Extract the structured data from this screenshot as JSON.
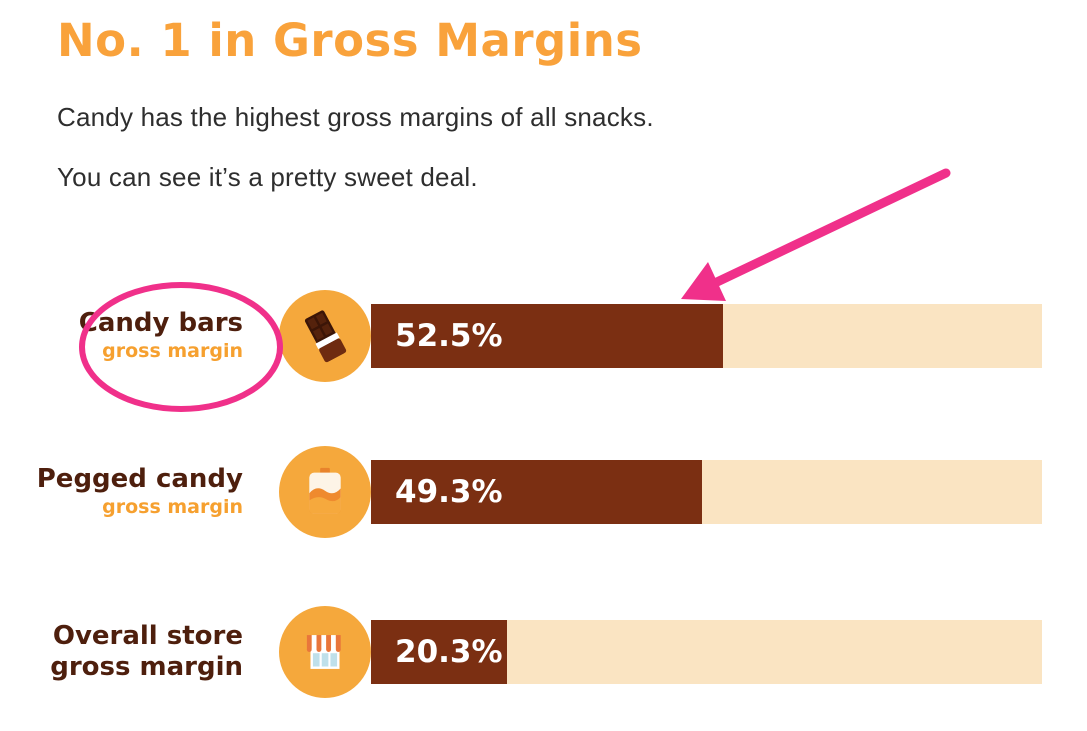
{
  "header": {
    "title": "No. 1 in Gross Margins",
    "line1": "Candy has the highest gross margins of all snacks.",
    "line2": "You can see it’s a pretty sweet deal."
  },
  "chart_data": {
    "type": "bar",
    "orientation": "horizontal",
    "xlim": [
      0,
      100
    ],
    "categories": [
      "Candy bars",
      "Pegged candy",
      "Overall store gross margin"
    ],
    "values": [
      52.5,
      49.3,
      20.3
    ],
    "rows": [
      {
        "label": "Candy bars",
        "label2": "",
        "sublabel": "gross margin",
        "value": 52.5,
        "value_label": "52.5%",
        "icon": "chocolate-bar-icon"
      },
      {
        "label": "Pegged candy",
        "label2": "",
        "sublabel": "gross margin",
        "value": 49.3,
        "value_label": "49.3%",
        "icon": "candy-bag-icon"
      },
      {
        "label": "Overall store",
        "label2": "gross margin",
        "sublabel": "",
        "value": 20.3,
        "value_label": "20.3%",
        "icon": "store-icon"
      }
    ],
    "colors": {
      "bar_fill": "#7B2F12",
      "bar_track": "#FAE4C2",
      "icon_circle": "#F5A83C",
      "accent_orange": "#F9A23B",
      "label_brown": "#4E1F0D",
      "annotation_pink": "#F0308A"
    },
    "legend": "none",
    "grid": false
  },
  "annotations": {
    "ellipse_around": "Candy bars label",
    "arrow_points_to": "Candy bars bar"
  }
}
